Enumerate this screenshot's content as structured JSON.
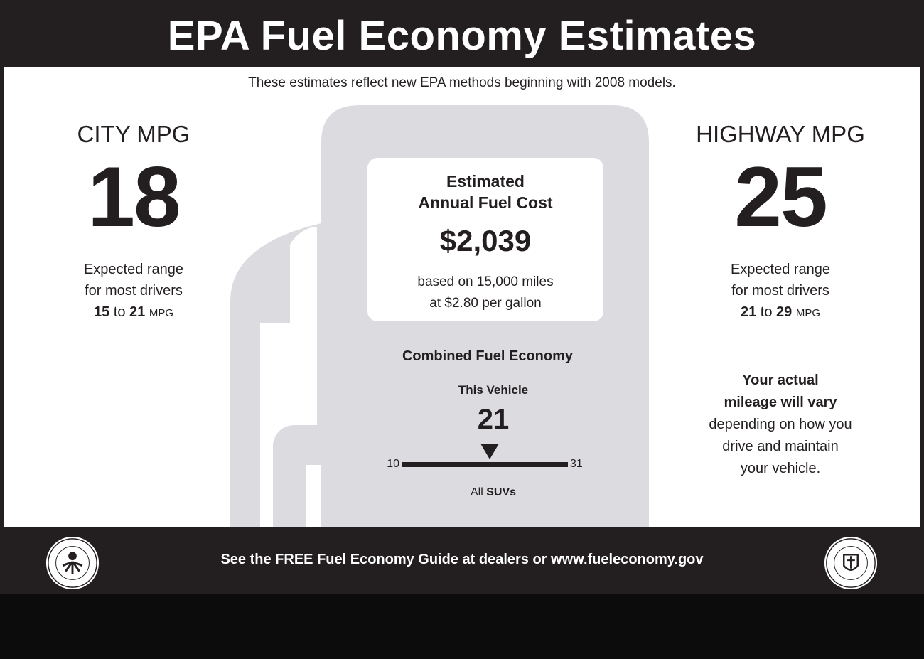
{
  "header": {
    "title": "EPA Fuel Economy Estimates"
  },
  "subtitle": "These estimates reflect new EPA methods beginning with 2008 models.",
  "city": {
    "label": "CITY MPG",
    "value": "18",
    "range_line1": "Expected range",
    "range_line2": "for most drivers",
    "range_low": "15",
    "range_to": "to",
    "range_high": "21",
    "range_unit": "MPG"
  },
  "highway": {
    "label": "HIGHWAY MPG",
    "value": "25",
    "range_line1": "Expected range",
    "range_line2": "for most drivers",
    "range_low": "21",
    "range_to": "to",
    "range_high": "29",
    "range_unit": "MPG"
  },
  "annual_cost": {
    "heading_line1": "Estimated",
    "heading_line2": "Annual Fuel Cost",
    "value": "$2,039",
    "note_line1": "based on 15,000 miles",
    "note_line2": "at $2.80 per gallon"
  },
  "combined": {
    "heading": "Combined Fuel Economy",
    "vehicle_label": "This Vehicle",
    "vehicle_value": "21",
    "scale_min": "10",
    "scale_max": "31",
    "class_prefix": "All",
    "class_name": "SUVs"
  },
  "notice": {
    "bold_line1": "Your actual",
    "bold_line2": "mileage will vary",
    "line3": "depending on how you",
    "line4": "drive and maintain",
    "line5": "your vehicle."
  },
  "footer": {
    "text": "See the FREE Fuel Economy Guide at dealers or www.fueleconomy.gov"
  },
  "colors": {
    "dark": "#231f20",
    "pump_gray": "#dcdbe0",
    "white": "#ffffff"
  },
  "icons": {
    "left_seal": "epa-seal-icon",
    "right_seal": "doe-seal-icon"
  }
}
